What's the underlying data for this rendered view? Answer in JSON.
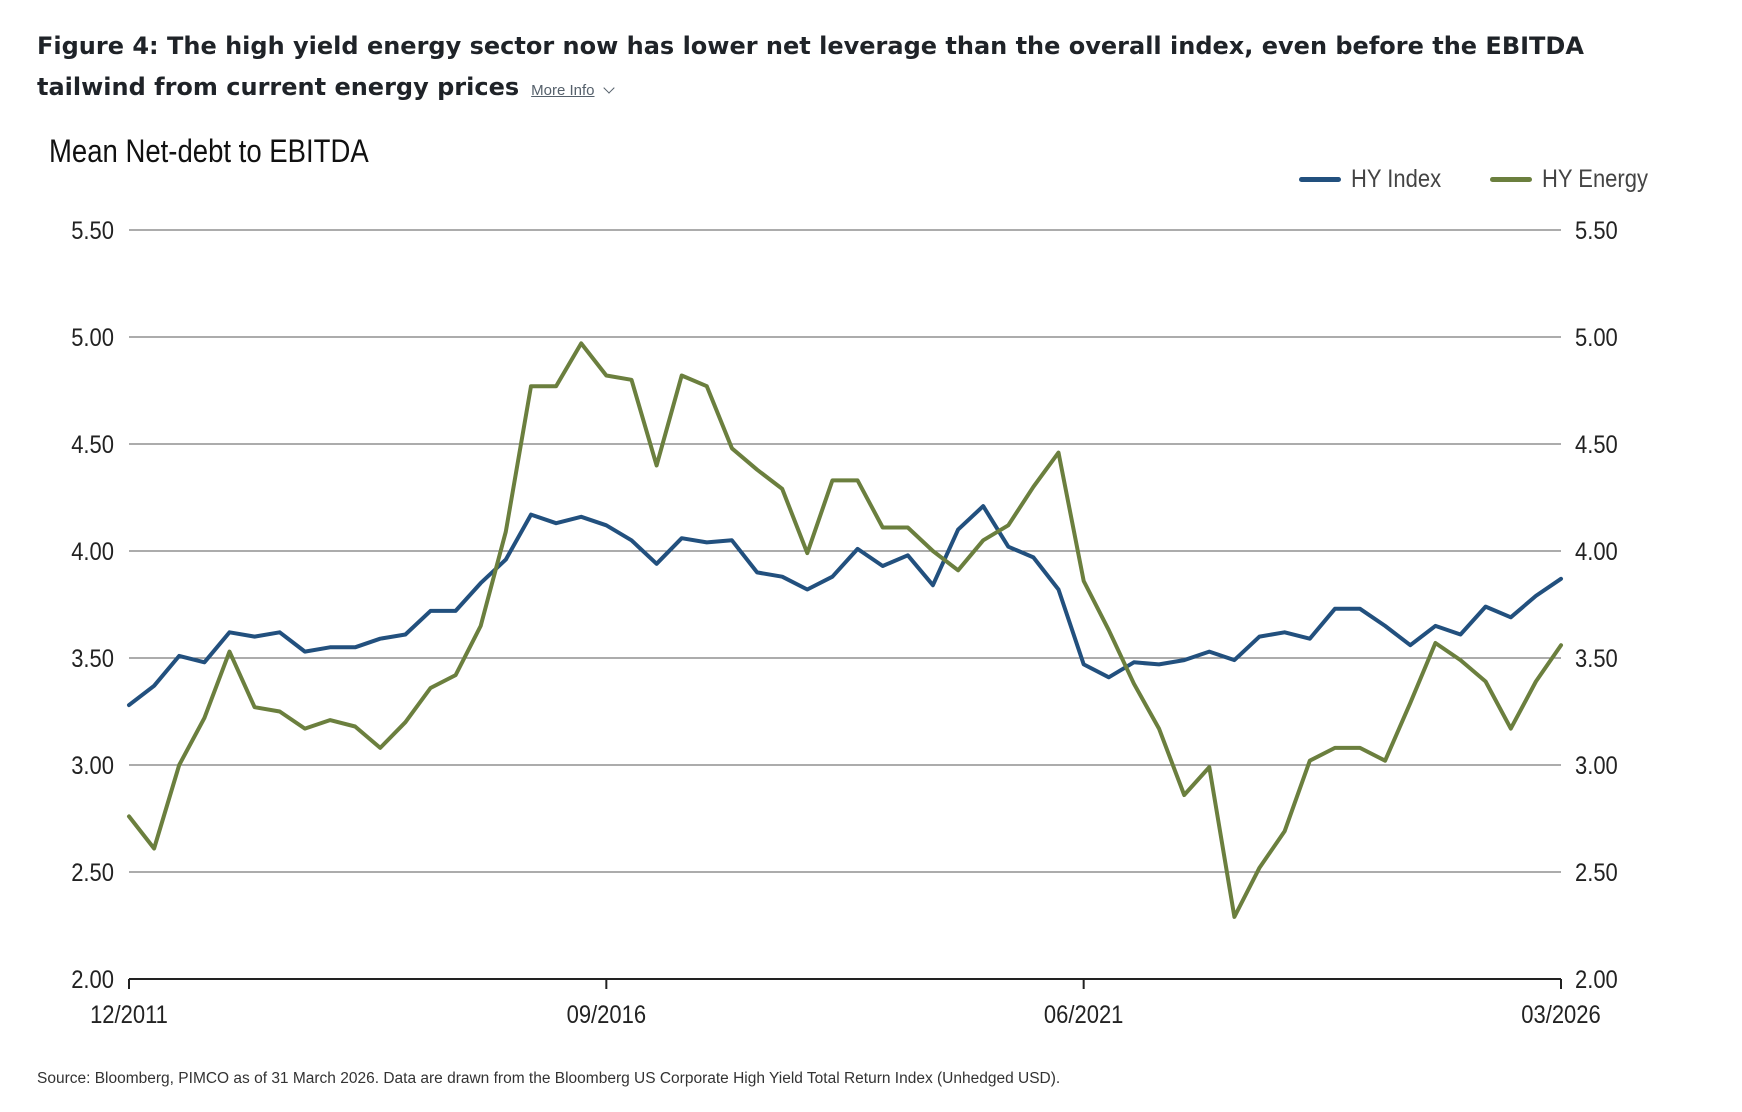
{
  "figure": {
    "title": "Figure 4: The high yield energy sector now has lower net leverage than the overall index, even before the EBITDA tailwind from current energy prices",
    "more_info_label": "More Info",
    "more_info_icon": "chevron-down-icon"
  },
  "source": "Source: Bloomberg, PIMCO as of 31 March 2026. Data are drawn from the Bloomberg US Corporate High Yield Total Return Index (Unhedged USD).",
  "chart_data": {
    "type": "line",
    "title": "Mean Net-debt to EBITDA",
    "xlabel": "",
    "ylabel": "",
    "ylim": [
      2.0,
      5.5
    ],
    "yticks": [
      "5.50",
      "5.00",
      "4.50",
      "4.00",
      "3.50",
      "3.00",
      "2.50",
      "2.00"
    ],
    "xlim": [
      "12/2011",
      "03/2026"
    ],
    "xticks": [
      "12/2011",
      "09/2016",
      "06/2021",
      "03/2026"
    ],
    "grid": true,
    "legend": "top-right",
    "dual_y_axis": true,
    "x": [
      "12/2011",
      "03/2012",
      "06/2012",
      "09/2012",
      "12/2012",
      "03/2013",
      "06/2013",
      "09/2013",
      "12/2013",
      "03/2014",
      "06/2014",
      "09/2014",
      "12/2014",
      "03/2015",
      "06/2015",
      "09/2015",
      "12/2015",
      "03/2016",
      "06/2016",
      "09/2016",
      "12/2016",
      "03/2017",
      "06/2017",
      "09/2017",
      "12/2017",
      "03/2018",
      "06/2018",
      "09/2018",
      "12/2018",
      "03/2019",
      "06/2019",
      "09/2019",
      "12/2019",
      "03/2020",
      "06/2020",
      "09/2020",
      "12/2020",
      "03/2021",
      "06/2021",
      "09/2021",
      "12/2021",
      "03/2022",
      "06/2022",
      "09/2022",
      "12/2022",
      "03/2023",
      "06/2023",
      "09/2023",
      "12/2023",
      "03/2024",
      "06/2024",
      "09/2024",
      "12/2024",
      "03/2025",
      "06/2025",
      "09/2025",
      "12/2025",
      "03/2026"
    ],
    "series": [
      {
        "name": "HY Index",
        "color": "#22507e",
        "values": [
          3.28,
          3.37,
          3.51,
          3.48,
          3.62,
          3.6,
          3.62,
          3.53,
          3.55,
          3.55,
          3.59,
          3.61,
          3.72,
          3.72,
          3.85,
          3.96,
          4.17,
          4.13,
          4.16,
          4.12,
          4.05,
          3.94,
          4.06,
          4.04,
          4.05,
          3.9,
          3.88,
          3.82,
          3.88,
          4.01,
          3.93,
          3.98,
          3.84,
          4.1,
          4.21,
          4.02,
          3.97,
          3.82,
          3.47,
          3.41,
          3.48,
          3.47,
          3.49,
          3.53,
          3.49,
          3.6,
          3.62,
          3.59,
          3.73,
          3.73,
          3.65,
          3.56,
          3.65,
          3.61,
          3.74,
          3.69,
          3.79,
          3.87
        ]
      },
      {
        "name": "HY Energy",
        "color": "#6b7f3e",
        "values": [
          2.76,
          2.61,
          3.0,
          3.22,
          3.53,
          3.27,
          3.25,
          3.17,
          3.21,
          3.18,
          3.08,
          3.2,
          3.36,
          3.42,
          3.65,
          4.09,
          4.77,
          4.77,
          4.97,
          4.82,
          4.8,
          4.4,
          4.82,
          4.77,
          4.48,
          4.38,
          4.29,
          3.99,
          4.33,
          4.33,
          4.11,
          4.11,
          4.0,
          3.91,
          4.05,
          4.12,
          4.3,
          4.46,
          3.86,
          3.63,
          3.38,
          3.17,
          2.86,
          2.99,
          2.29,
          2.52,
          2.69,
          3.02,
          3.08,
          3.08,
          3.02,
          3.29,
          3.57,
          3.49,
          3.39,
          3.17,
          3.39,
          3.56
        ]
      }
    ]
  }
}
